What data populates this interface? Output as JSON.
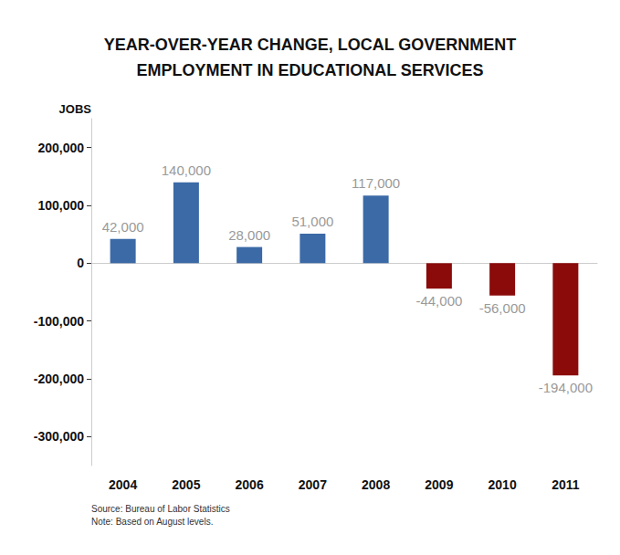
{
  "chart_data": {
    "type": "bar",
    "title": "YEAR-OVER-YEAR CHANGE, LOCAL GOVERNMENT\nEMPLOYMENT IN EDUCATIONAL SERVICES",
    "y_label": "JOBS",
    "categories": [
      "2004",
      "2005",
      "2006",
      "2007",
      "2008",
      "2009",
      "2010",
      "2011"
    ],
    "values": [
      42000,
      140000,
      28000,
      51000,
      117000,
      -44000,
      -56000,
      -194000
    ],
    "value_labels": [
      "42,000",
      "140,000",
      "28,000",
      "51,000",
      "117,000",
      "-44,000",
      "-56,000",
      "-194,000"
    ],
    "colors": [
      "#3b6aa6",
      "#3b6aa6",
      "#3b6aa6",
      "#3b6aa6",
      "#3b6aa6",
      "#8b0a0a",
      "#8b0a0a",
      "#8b0a0a"
    ],
    "ylim": [
      -350000,
      250000
    ],
    "yticks": [
      {
        "value": -300000,
        "label": "-300,000"
      },
      {
        "value": -200000,
        "label": "-200,000"
      },
      {
        "value": -100000,
        "label": "-100,000"
      },
      0,
      {
        "value": 100000,
        "label": "100,000"
      },
      {
        "value": 200000,
        "label": "200,000"
      }
    ],
    "grid": false,
    "data_labels": true,
    "annotations": [
      "Source: Bureau of Labor Statistics",
      "Note: Based on August levels."
    ]
  }
}
